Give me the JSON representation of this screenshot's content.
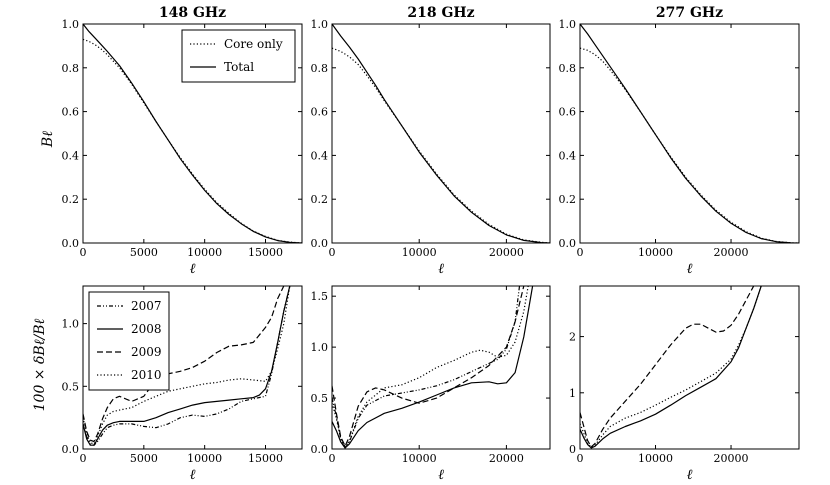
{
  "figure": {
    "top_ylabel": "Bℓ",
    "bottom_ylabel": "100 × δBℓ/Bℓ",
    "xlabel": "ℓ"
  },
  "chart_data": [
    {
      "type": "line",
      "title": "148 GHz",
      "xlabel": "ℓ",
      "ylabel": "Bℓ",
      "xlim": [
        0,
        18000
      ],
      "ylim": [
        0,
        1.0
      ],
      "xticks": [
        0,
        5000,
        10000,
        15000
      ],
      "xtick_labels": [
        "0",
        "5000",
        "10000",
        "15000"
      ],
      "yticks": [
        0.0,
        0.2,
        0.4,
        0.6,
        0.8,
        1.0
      ],
      "ytick_labels": [
        "0.0",
        "0.2",
        "0.4",
        "0.6",
        "0.8",
        "1.0"
      ],
      "legend": {
        "position": "top-right",
        "entries": [
          "Core only",
          "Total"
        ]
      },
      "series": [
        {
          "name": "Core only",
          "style": "dotted",
          "x": [
            0,
            500,
            1000,
            1500,
            2000,
            3000,
            4000,
            5000,
            6000,
            7000,
            8000,
            9000,
            10000,
            11000,
            12000,
            13000,
            14000,
            15000,
            16000,
            17000,
            18000
          ],
          "y": [
            0.93,
            0.92,
            0.905,
            0.885,
            0.86,
            0.8,
            0.725,
            0.64,
            0.555,
            0.47,
            0.39,
            0.315,
            0.245,
            0.185,
            0.135,
            0.09,
            0.055,
            0.03,
            0.012,
            0.004,
            0.0
          ]
        },
        {
          "name": "Total",
          "style": "solid",
          "x": [
            0,
            500,
            1000,
            1500,
            2000,
            3000,
            4000,
            5000,
            6000,
            7000,
            8000,
            9000,
            10000,
            11000,
            12000,
            13000,
            14000,
            15000,
            16000,
            17000,
            18000
          ],
          "y": [
            1.0,
            0.965,
            0.935,
            0.905,
            0.875,
            0.81,
            0.73,
            0.645,
            0.555,
            0.47,
            0.385,
            0.31,
            0.24,
            0.18,
            0.13,
            0.088,
            0.053,
            0.028,
            0.011,
            0.003,
            0.0
          ]
        }
      ]
    },
    {
      "type": "line",
      "title": "218 GHz",
      "xlabel": "ℓ",
      "ylabel": "",
      "xlim": [
        0,
        25000
      ],
      "ylim": [
        0,
        1.0
      ],
      "xticks": [
        0,
        10000,
        20000
      ],
      "xtick_labels": [
        "0",
        "10000",
        "20000"
      ],
      "yticks": [
        0.0,
        0.2,
        0.4,
        0.6,
        0.8,
        1.0
      ],
      "ytick_labels": [
        "0.0",
        "0.2",
        "0.4",
        "0.6",
        "0.8",
        "1.0"
      ],
      "series": [
        {
          "name": "Core only",
          "style": "dotted",
          "x": [
            0,
            1000,
            2000,
            3000,
            4000,
            5000,
            6000,
            8000,
            10000,
            12000,
            14000,
            16000,
            18000,
            20000,
            22000,
            24000,
            25000
          ],
          "y": [
            0.89,
            0.875,
            0.85,
            0.815,
            0.765,
            0.71,
            0.65,
            0.535,
            0.42,
            0.315,
            0.22,
            0.145,
            0.085,
            0.04,
            0.014,
            0.003,
            0.0
          ]
        },
        {
          "name": "Total",
          "style": "solid",
          "x": [
            0,
            1000,
            2000,
            3000,
            4000,
            5000,
            6000,
            8000,
            10000,
            12000,
            14000,
            16000,
            18000,
            20000,
            22000,
            24000,
            25000
          ],
          "y": [
            1.0,
            0.945,
            0.895,
            0.84,
            0.78,
            0.72,
            0.655,
            0.535,
            0.415,
            0.31,
            0.215,
            0.14,
            0.08,
            0.037,
            0.012,
            0.002,
            0.0
          ]
        }
      ]
    },
    {
      "type": "line",
      "title": "277 GHz",
      "xlabel": "ℓ",
      "ylabel": "",
      "xlim": [
        0,
        29000
      ],
      "ylim": [
        0,
        1.0
      ],
      "xticks": [
        0,
        10000,
        20000
      ],
      "xtick_labels": [
        "0",
        "10000",
        "20000"
      ],
      "yticks": [
        0.0,
        0.2,
        0.4,
        0.6,
        0.8,
        1.0
      ],
      "ytick_labels": [
        "0.0",
        "0.2",
        "0.4",
        "0.6",
        "0.8",
        "1.0"
      ],
      "series": [
        {
          "name": "Core only",
          "style": "dotted",
          "x": [
            0,
            1000,
            2000,
            3000,
            4000,
            5000,
            6000,
            8000,
            10000,
            12000,
            14000,
            16000,
            18000,
            20000,
            22000,
            24000,
            26000,
            28000,
            29000
          ],
          "y": [
            0.89,
            0.88,
            0.86,
            0.83,
            0.79,
            0.745,
            0.7,
            0.6,
            0.495,
            0.395,
            0.3,
            0.22,
            0.15,
            0.095,
            0.052,
            0.022,
            0.007,
            0.001,
            0.0
          ]
        },
        {
          "name": "Total",
          "style": "solid",
          "x": [
            0,
            1000,
            2000,
            3000,
            4000,
            5000,
            6000,
            8000,
            10000,
            12000,
            14000,
            16000,
            18000,
            20000,
            22000,
            24000,
            26000,
            28000,
            29000
          ],
          "y": [
            1.0,
            0.955,
            0.905,
            0.855,
            0.805,
            0.755,
            0.705,
            0.6,
            0.495,
            0.39,
            0.295,
            0.215,
            0.145,
            0.09,
            0.048,
            0.02,
            0.006,
            0.001,
            0.0
          ]
        }
      ]
    },
    {
      "type": "line",
      "title": "",
      "xlabel": "ℓ",
      "ylabel": "100 × δBℓ/Bℓ",
      "xlim": [
        0,
        18000
      ],
      "ylim": [
        0,
        1.3
      ],
      "xticks": [
        0,
        5000,
        10000,
        15000
      ],
      "xtick_labels": [
        "0",
        "5000",
        "10000",
        "15000"
      ],
      "yticks": [
        0.0,
        0.5,
        1.0
      ],
      "ytick_labels": [
        "0.0",
        "0.5",
        "1.0"
      ],
      "legend": {
        "position": "top-left",
        "entries": [
          "2007",
          "2008",
          "2009",
          "2010"
        ]
      },
      "series": [
        {
          "name": "2007",
          "style": "dashdotdot",
          "x": [
            0,
            300,
            600,
            900,
            1200,
            1600,
            2000,
            2500,
            3000,
            4000,
            5000,
            6000,
            7000,
            8000,
            9000,
            10000,
            11000,
            12000,
            13000,
            14000,
            15000,
            15500,
            16000,
            16500,
            17000
          ],
          "y": [
            0.2,
            0.1,
            0.04,
            0.03,
            0.06,
            0.12,
            0.17,
            0.19,
            0.2,
            0.2,
            0.18,
            0.17,
            0.2,
            0.25,
            0.27,
            0.26,
            0.28,
            0.32,
            0.38,
            0.4,
            0.42,
            0.6,
            0.85,
            1.1,
            1.3
          ]
        },
        {
          "name": "2008",
          "style": "solid",
          "x": [
            0,
            300,
            600,
            900,
            1200,
            1600,
            2000,
            2500,
            3000,
            4000,
            5000,
            6000,
            7000,
            8000,
            9000,
            10000,
            11000,
            12000,
            13000,
            14000,
            14500,
            15000,
            15500,
            16000,
            16500,
            17000
          ],
          "y": [
            0.2,
            0.08,
            0.03,
            0.03,
            0.08,
            0.15,
            0.19,
            0.21,
            0.22,
            0.22,
            0.22,
            0.25,
            0.29,
            0.32,
            0.35,
            0.37,
            0.38,
            0.39,
            0.4,
            0.41,
            0.43,
            0.48,
            0.62,
            0.85,
            1.1,
            1.3
          ]
        },
        {
          "name": "2009",
          "style": "dashed",
          "x": [
            0,
            300,
            600,
            900,
            1200,
            1600,
            2000,
            2500,
            3000,
            4000,
            5000,
            6000,
            7000,
            8000,
            9000,
            10000,
            11000,
            12000,
            13000,
            14000,
            15000,
            15500,
            16000,
            16500
          ],
          "y": [
            0.28,
            0.14,
            0.07,
            0.06,
            0.12,
            0.24,
            0.33,
            0.4,
            0.42,
            0.38,
            0.42,
            0.55,
            0.6,
            0.62,
            0.65,
            0.7,
            0.77,
            0.82,
            0.83,
            0.85,
            0.97,
            1.05,
            1.2,
            1.3
          ]
        },
        {
          "name": "2010",
          "style": "dotted",
          "x": [
            0,
            300,
            600,
            900,
            1200,
            1600,
            2000,
            2500,
            3000,
            4000,
            5000,
            6000,
            7000,
            8000,
            9000,
            10000,
            11000,
            12000,
            13000,
            14000,
            15000,
            15500,
            16000,
            16500,
            17000
          ],
          "y": [
            0.25,
            0.12,
            0.05,
            0.04,
            0.1,
            0.2,
            0.27,
            0.3,
            0.31,
            0.33,
            0.38,
            0.42,
            0.46,
            0.48,
            0.5,
            0.52,
            0.53,
            0.55,
            0.56,
            0.55,
            0.54,
            0.62,
            0.8,
            1.0,
            1.3
          ]
        }
      ]
    },
    {
      "type": "line",
      "title": "",
      "xlabel": "ℓ",
      "ylabel": "",
      "xlim": [
        0,
        25000
      ],
      "ylim": [
        0,
        1.6
      ],
      "xticks": [
        0,
        10000,
        20000
      ],
      "xtick_labels": [
        "0",
        "10000",
        "20000"
      ],
      "yticks": [
        0.0,
        0.5,
        1.0,
        1.5
      ],
      "ytick_labels": [
        "0.0",
        "0.5",
        "1.0",
        "1.5"
      ],
      "series": [
        {
          "name": "2008",
          "style": "solid",
          "x": [
            0,
            500,
            1000,
            1500,
            2000,
            3000,
            4000,
            6000,
            8000,
            10000,
            12000,
            14000,
            16000,
            18000,
            19000,
            20000,
            21000,
            22000,
            22500,
            23000
          ],
          "y": [
            0.27,
            0.18,
            0.07,
            0.01,
            0.05,
            0.18,
            0.26,
            0.35,
            0.4,
            0.46,
            0.53,
            0.6,
            0.65,
            0.66,
            0.64,
            0.65,
            0.75,
            1.1,
            1.35,
            1.6
          ]
        },
        {
          "name": "2009",
          "style": "dashed",
          "x": [
            0,
            500,
            1000,
            1500,
            2000,
            3000,
            4000,
            5000,
            6000,
            8000,
            10000,
            12000,
            14000,
            16000,
            18000,
            20000,
            21000,
            22000
          ],
          "y": [
            0.62,
            0.35,
            0.12,
            0.03,
            0.12,
            0.42,
            0.56,
            0.6,
            0.58,
            0.5,
            0.45,
            0.5,
            0.6,
            0.7,
            0.82,
            1.0,
            1.25,
            1.6
          ]
        },
        {
          "name": "2010",
          "style": "dotted",
          "x": [
            0,
            500,
            1000,
            1500,
            2000,
            3000,
            4000,
            6000,
            8000,
            10000,
            12000,
            14000,
            16000,
            17000,
            18000,
            19000,
            20000,
            21000,
            22000,
            22500
          ],
          "y": [
            0.45,
            0.3,
            0.1,
            0.02,
            0.08,
            0.32,
            0.46,
            0.6,
            0.63,
            0.7,
            0.8,
            0.87,
            0.95,
            0.97,
            0.95,
            0.9,
            0.92,
            1.05,
            1.35,
            1.6
          ]
        },
        {
          "name": "2007",
          "style": "dashdotdot",
          "x": [
            0,
            500,
            1000,
            1500,
            2000,
            3000,
            4000,
            6000,
            8000,
            10000,
            12000,
            14000,
            16000,
            18000,
            19000,
            20000,
            21000,
            21500
          ],
          "y": [
            0.5,
            0.32,
            0.1,
            0.02,
            0.07,
            0.3,
            0.43,
            0.52,
            0.55,
            0.58,
            0.62,
            0.68,
            0.76,
            0.84,
            0.88,
            0.98,
            1.25,
            1.6
          ]
        }
      ]
    },
    {
      "type": "line",
      "title": "",
      "xlabel": "ℓ",
      "ylabel": "",
      "xlim": [
        0,
        29000
      ],
      "ylim": [
        0,
        2.9
      ],
      "xticks": [
        0,
        10000,
        20000
      ],
      "xtick_labels": [
        "0",
        "10000",
        "20000"
      ],
      "yticks": [
        0,
        1,
        2
      ],
      "ytick_labels": [
        "0",
        "1",
        "2"
      ],
      "series": [
        {
          "name": "2008",
          "style": "solid",
          "x": [
            0,
            500,
            1000,
            1500,
            2000,
            3000,
            4000,
            6000,
            8000,
            10000,
            12000,
            14000,
            16000,
            18000,
            20000,
            21000,
            22000,
            23000,
            24000
          ],
          "y": [
            0.35,
            0.2,
            0.08,
            0.02,
            0.05,
            0.18,
            0.28,
            0.4,
            0.5,
            0.62,
            0.78,
            0.95,
            1.1,
            1.25,
            1.55,
            1.8,
            2.15,
            2.5,
            2.9
          ]
        },
        {
          "name": "2009",
          "style": "dashed",
          "x": [
            0,
            500,
            1000,
            1500,
            2000,
            3000,
            4000,
            6000,
            8000,
            10000,
            12000,
            14000,
            15000,
            16000,
            17000,
            18000,
            19000,
            20000,
            21000,
            22000,
            23000
          ],
          "y": [
            0.65,
            0.4,
            0.15,
            0.04,
            0.1,
            0.35,
            0.55,
            0.85,
            1.15,
            1.5,
            1.85,
            2.15,
            2.22,
            2.22,
            2.15,
            2.08,
            2.1,
            2.2,
            2.4,
            2.65,
            2.9
          ]
        },
        {
          "name": "2010",
          "style": "dotted",
          "x": [
            0,
            500,
            1000,
            1500,
            2000,
            3000,
            4000,
            6000,
            8000,
            10000,
            12000,
            14000,
            16000,
            18000,
            20000,
            21000,
            22000,
            23000,
            24000
          ],
          "y": [
            0.45,
            0.28,
            0.1,
            0.03,
            0.07,
            0.25,
            0.4,
            0.55,
            0.65,
            0.78,
            0.92,
            1.05,
            1.2,
            1.35,
            1.6,
            1.85,
            2.15,
            2.5,
            2.9
          ]
        }
      ]
    }
  ]
}
